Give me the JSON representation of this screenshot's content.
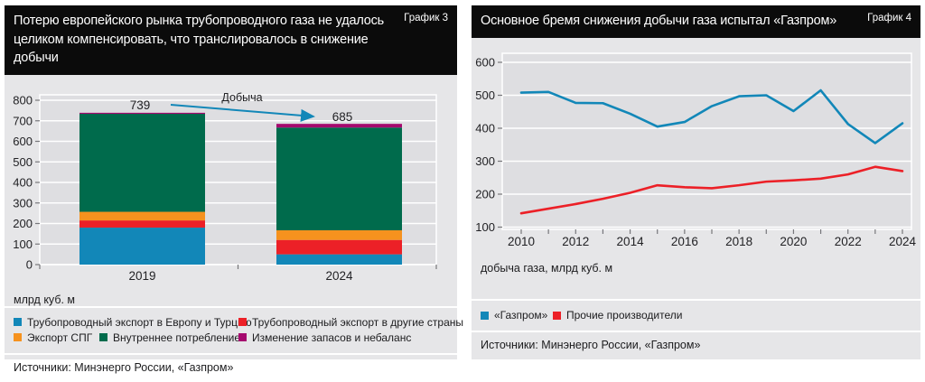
{
  "colors": {
    "blue": "#1287b8",
    "red": "#ec2027",
    "orange": "#f6921e",
    "green": "#006b4c",
    "magenta": "#a5096e",
    "panel_bg": "#e6e6e8",
    "plot_bg": "#dedee1",
    "grid": "#ffffff",
    "tick": "#77777b",
    "title_bar_bg": "#0b0b0b",
    "title_text": "#ffffff"
  },
  "panels": {
    "left": {
      "tag": "График 3",
      "title": "Потерю европейского рынка трубопроводного газа не удалось целиком компенсировать, что транслировалось в снижение добычи",
      "unit_label": "млрд куб. м",
      "source": "Источники: Минэнерго России, «Газпром»",
      "chart_data": {
        "type": "bar",
        "stacked": true,
        "categories": [
          "2019",
          "2024"
        ],
        "series": [
          {
            "name": "Трубопроводный экспорт в Европу и Турцию",
            "color": "#1287b8",
            "values": [
              180,
              50
            ]
          },
          {
            "name": "Трубопроводный экспорт в другие страны",
            "color": "#ec2027",
            "values": [
              35,
              70
            ]
          },
          {
            "name": "Экспорт СПГ",
            "color": "#f6921e",
            "values": [
              42,
              47
            ]
          },
          {
            "name": "Внутреннее потребление",
            "color": "#006b4c",
            "values": [
              478,
              500
            ]
          },
          {
            "name": "Изменение запасов и небаланс",
            "color": "#a5096e",
            "values": [
              4,
              18
            ]
          }
        ],
        "totals": [
          739,
          685
        ],
        "ylim": [
          0,
          800
        ],
        "ytick_step": 100,
        "grid": true,
        "legend_position": "bottom",
        "annotation": {
          "label": "Добыча",
          "from": "739",
          "to": "685"
        }
      }
    },
    "right": {
      "tag": "График 4",
      "title": "Основное бремя снижения добычи газа испытал «Газпром»",
      "unit_label": "добыча газа, млрд куб. м",
      "source": "Источники: Минэнерго России, «Газпром»",
      "chart_data": {
        "type": "line",
        "x": [
          2010,
          2011,
          2012,
          2013,
          2014,
          2015,
          2016,
          2017,
          2018,
          2019,
          2020,
          2021,
          2022,
          2023,
          2024
        ],
        "series": [
          {
            "name": "«Газпром»",
            "color": "#1287b8",
            "values": [
              508,
              510,
              477,
              476,
              444,
              405,
              419,
              467,
              497,
              500,
              452,
              515,
              413,
              355,
              415
            ]
          },
          {
            "name": "Прочие производители",
            "color": "#ec2027",
            "values": [
              142,
              156,
              170,
              186,
              204,
              227,
              221,
              218,
              227,
              238,
              242,
              247,
              260,
              283,
              270
            ]
          }
        ],
        "ylim": [
          100,
          600
        ],
        "ytick_step": 100,
        "xticks_labeled": [
          2010,
          2012,
          2014,
          2016,
          2018,
          2020,
          2022,
          2024
        ],
        "grid": true,
        "legend_position": "bottom"
      }
    }
  }
}
